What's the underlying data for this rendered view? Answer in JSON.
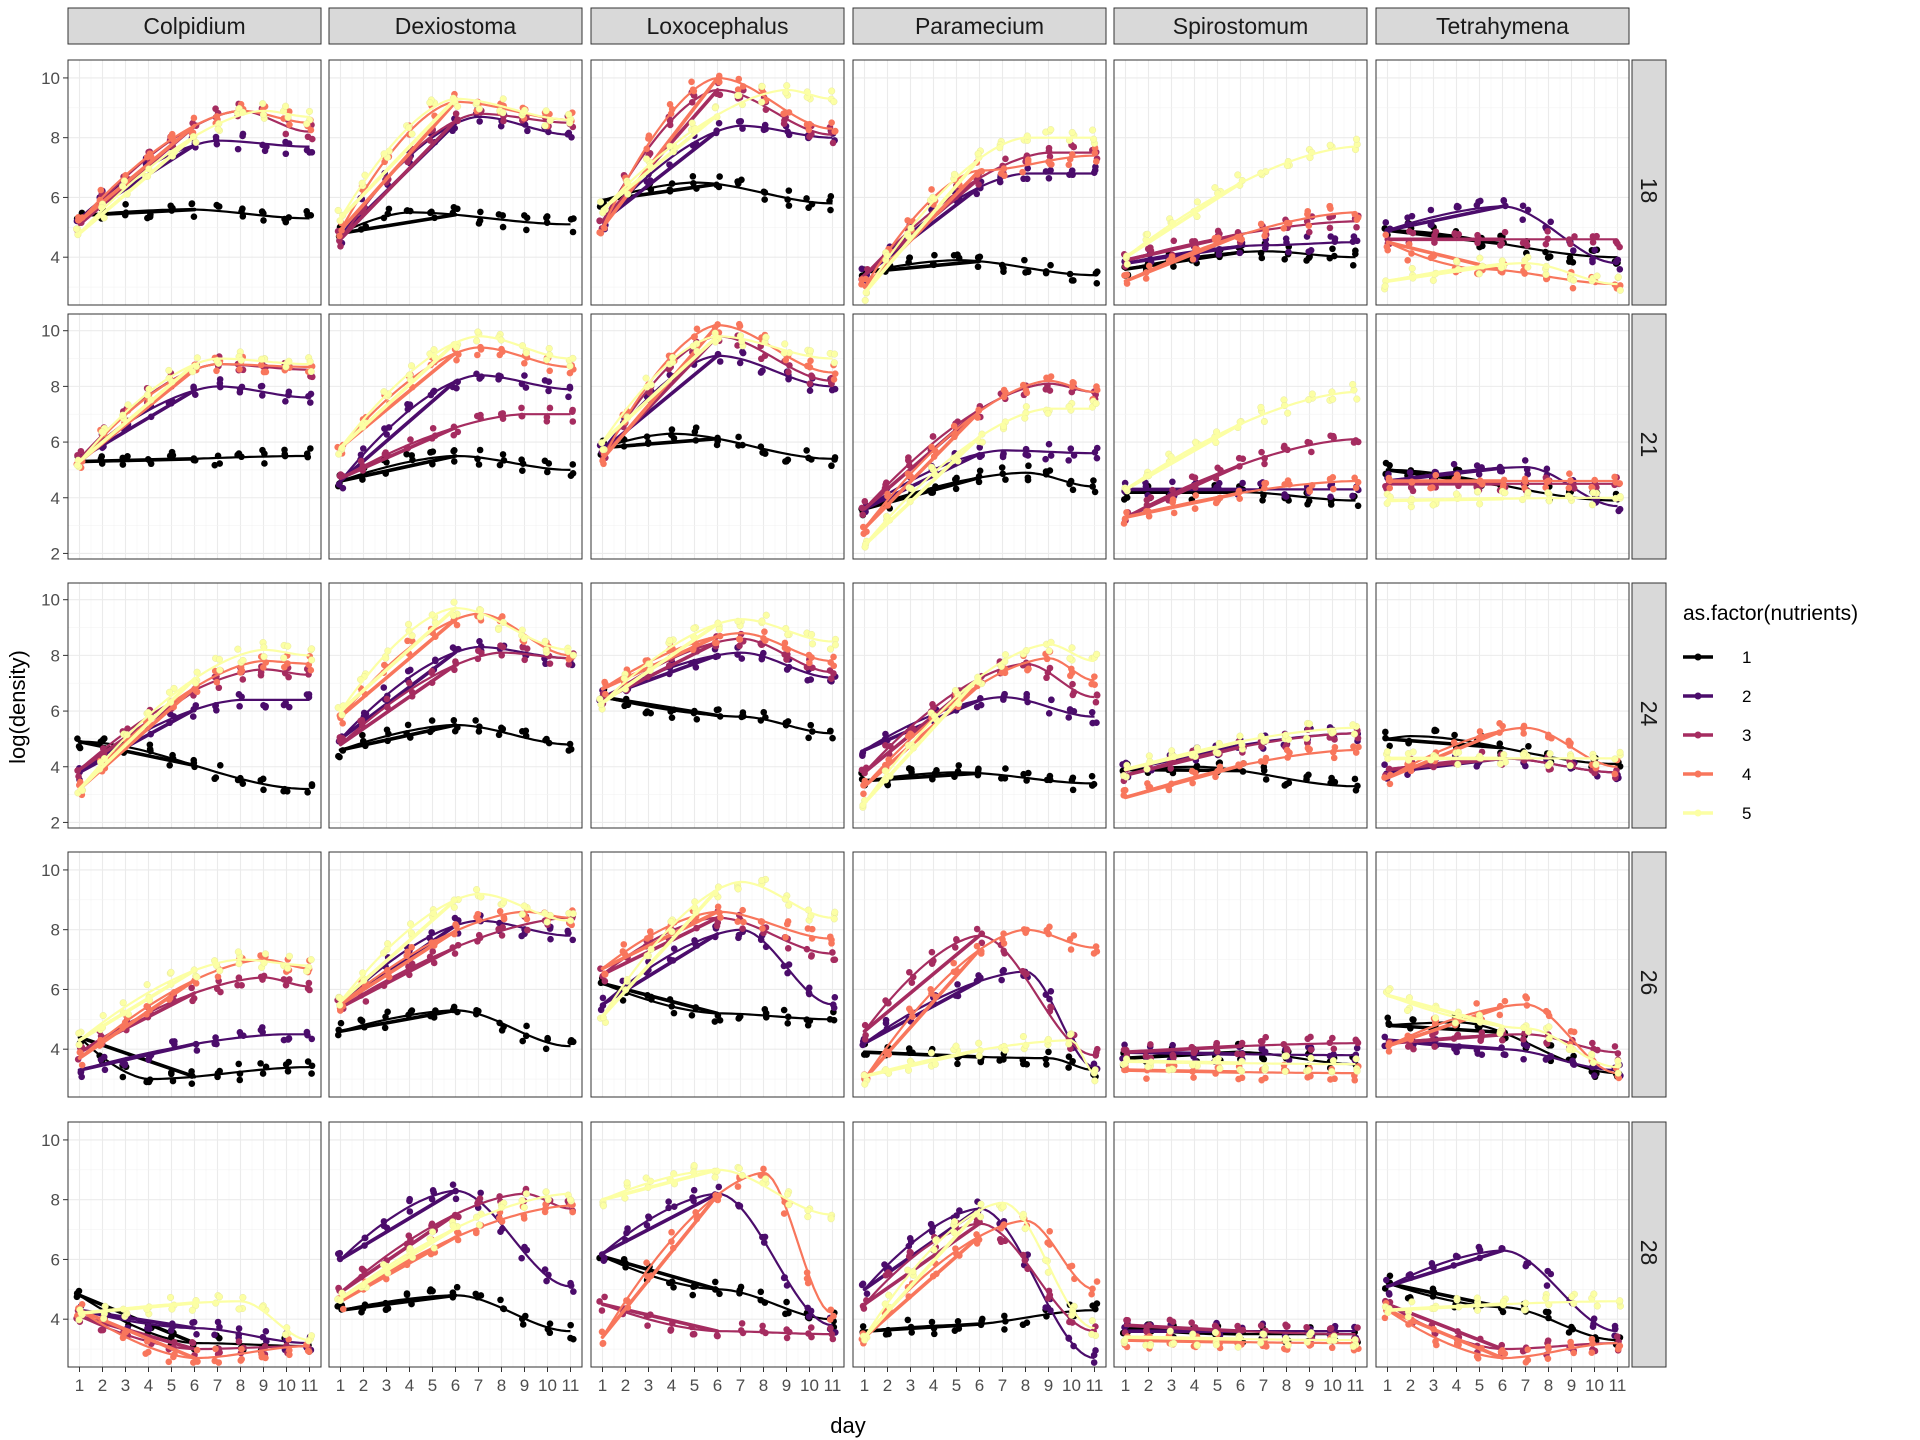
{
  "chart_data": {
    "type": "scatter",
    "facet_cols": [
      "Colpidium",
      "Dexiostoma",
      "Loxocephalus",
      "Paramecium",
      "Spirostomum",
      "Tetrahymena"
    ],
    "facet_rows": [
      "18",
      "21",
      "24",
      "26",
      "28"
    ],
    "xlabel": "day",
    "ylabel": "log(density)",
    "x_ticks": [
      "1",
      "2",
      "3",
      "4",
      "5",
      "6",
      "7",
      "8",
      "9",
      "10",
      "11"
    ],
    "y_ticks_by_row": [
      [
        "4",
        "6",
        "8",
        "10"
      ],
      [
        "2",
        "4",
        "6",
        "8",
        "10"
      ],
      [
        "2",
        "4",
        "6",
        "8",
        "10"
      ],
      [
        "4",
        "6",
        "8",
        "10"
      ],
      [
        "4",
        "6",
        "8",
        "10"
      ]
    ],
    "ylim_by_row": [
      [
        2.4,
        10.6
      ],
      [
        1.8,
        10.6
      ],
      [
        1.8,
        10.6
      ],
      [
        2.4,
        10.6
      ],
      [
        2.4,
        10.6
      ]
    ],
    "legend": {
      "title": "as.factor(nutrients)",
      "labels": [
        "1",
        "2",
        "3",
        "4",
        "5"
      ],
      "position": "right"
    },
    "colors": {
      "1": "#000000",
      "2": "#4b0c6b",
      "3": "#a52c60",
      "4": "#f8765c",
      "5": "#fcffa4",
      "strip": "#d9d9d9",
      "grid": "#ebebeb",
      "frame": "#333333"
    },
    "series_note_values": "each facet series given as [start, peak-day, peak, end] of the fitted curve",
    "series": [
      [
        [
          [
            5.4,
            5.6,
            5.6,
            5.3
          ],
          [
            5.3,
            7,
            7.9,
            7.7
          ],
          [
            5.1,
            8,
            8.9,
            8.2
          ],
          [
            5.2,
            8,
            8.9,
            8.5
          ],
          [
            4.8,
            9,
            8.9,
            8.7
          ]
        ],
        [
          [
            4.8,
            4,
            5.5,
            5.1
          ],
          [
            4.7,
            7,
            8.7,
            8.1
          ],
          [
            4.6,
            7,
            8.8,
            8.5
          ],
          [
            4.9,
            6,
            9.2,
            8.6
          ],
          [
            5.3,
            6,
            9.3,
            8.6
          ]
        ],
        [
          [
            5.9,
            5,
            6.5,
            5.8
          ],
          [
            5.2,
            7,
            8.4,
            8.0
          ],
          [
            5.2,
            6,
            9.6,
            8.1
          ],
          [
            5.0,
            6,
            10.0,
            8.3
          ],
          [
            5.6,
            9,
            9.6,
            9.3
          ]
        ],
        [
          [
            3.5,
            5,
            3.9,
            3.4
          ],
          [
            3.4,
            8,
            6.8,
            6.8
          ],
          [
            3.4,
            9,
            7.5,
            7.5
          ],
          [
            3.0,
            6,
            6.9,
            7.4
          ],
          [
            2.8,
            8,
            8.0,
            8.0
          ]
        ],
        [
          [
            3.6,
            7,
            4.2,
            4.0
          ],
          [
            3.8,
            7,
            4.4,
            4.5
          ],
          [
            3.9,
            11,
            5.2,
            5.2
          ],
          [
            3.2,
            11,
            5.5,
            5.5
          ],
          [
            4.0,
            11,
            7.7,
            7.7
          ]
        ],
        [
          [
            4.9,
            1,
            4.9,
            4.0
          ],
          [
            4.9,
            6,
            5.7,
            3.8
          ],
          [
            4.6,
            11,
            4.6,
            3.1
          ],
          [
            4.5,
            5,
            3.6,
            3.1
          ],
          [
            3.2,
            7,
            3.8,
            3.1
          ]
        ]
      ],
      [
        [
          [
            5.3,
            1,
            5.3,
            5.5
          ],
          [
            5.4,
            7,
            8.0,
            7.6
          ],
          [
            5.4,
            7,
            8.8,
            8.6
          ],
          [
            5.3,
            7,
            8.8,
            8.7
          ],
          [
            5.3,
            7,
            9.0,
            8.8
          ]
        ],
        [
          [
            4.6,
            6,
            5.5,
            5.0
          ],
          [
            4.6,
            7,
            8.4,
            7.9
          ],
          [
            4.7,
            9,
            7.0,
            7.0
          ],
          [
            5.8,
            7,
            9.4,
            8.7
          ],
          [
            5.8,
            7,
            9.8,
            9.0
          ]
        ],
        [
          [
            5.8,
            4,
            6.3,
            5.4
          ],
          [
            5.7,
            6,
            9.1,
            8.0
          ],
          [
            5.5,
            6,
            9.8,
            8.2
          ],
          [
            5.4,
            6,
            10.2,
            8.5
          ],
          [
            6.0,
            6,
            9.8,
            9.0
          ]
        ],
        [
          [
            3.6,
            8,
            4.9,
            4.4
          ],
          [
            3.6,
            7,
            5.7,
            5.6
          ],
          [
            3.6,
            9,
            8.1,
            7.8
          ],
          [
            2.9,
            9,
            8.2,
            7.8
          ],
          [
            2.3,
            9,
            7.2,
            7.2
          ]
        ],
        [
          [
            4.2,
            6,
            4.2,
            3.9
          ],
          [
            4.3,
            11,
            4.3,
            4.3
          ],
          [
            3.3,
            11,
            6.1,
            6.1
          ],
          [
            3.3,
            11,
            4.6,
            4.6
          ],
          [
            4.3,
            11,
            7.8,
            7.8
          ]
        ],
        [
          [
            5.0,
            1,
            5.0,
            3.9
          ],
          [
            4.6,
            7,
            5.1,
            3.7
          ],
          [
            4.5,
            11,
            4.5,
            3.5
          ],
          [
            4.6,
            11,
            4.6,
            3.3
          ],
          [
            3.9,
            11,
            4.0,
            3.5
          ]
        ]
      ],
      [
        [
          [
            4.9,
            1,
            4.9,
            3.2
          ],
          [
            3.8,
            8,
            6.4,
            6.4
          ],
          [
            3.9,
            9,
            7.5,
            7.3
          ],
          [
            3.2,
            9,
            7.8,
            7.7
          ],
          [
            3.2,
            9,
            8.2,
            8.0
          ]
        ],
        [
          [
            4.6,
            6,
            5.5,
            4.8
          ],
          [
            5.0,
            7,
            8.3,
            7.9
          ],
          [
            4.8,
            8,
            8.1,
            7.9
          ],
          [
            5.8,
            7,
            9.5,
            8.0
          ],
          [
            6.0,
            6,
            9.7,
            8.2
          ]
        ],
        [
          [
            6.5,
            7,
            5.8,
            5.2
          ],
          [
            6.5,
            7,
            8.1,
            7.2
          ],
          [
            6.4,
            7,
            8.6,
            7.4
          ],
          [
            6.8,
            7,
            8.8,
            7.8
          ],
          [
            6.3,
            7,
            9.3,
            8.5
          ]
        ],
        [
          [
            3.5,
            5,
            3.8,
            3.4
          ],
          [
            4.6,
            7,
            6.5,
            5.8
          ],
          [
            3.8,
            8,
            7.7,
            6.5
          ],
          [
            3.3,
            9,
            7.9,
            7.1
          ],
          [
            2.7,
            9,
            8.4,
            7.8
          ]
        ],
        [
          [
            3.9,
            4,
            4.0,
            3.3
          ],
          [
            3.9,
            11,
            5.2,
            5.2
          ],
          [
            3.7,
            11,
            5.2,
            5.2
          ],
          [
            2.9,
            11,
            4.6,
            4.6
          ],
          [
            3.9,
            11,
            5.4,
            5.4
          ]
        ],
        [
          [
            5.0,
            2,
            5.1,
            4.1
          ],
          [
            3.8,
            6,
            4.3,
            3.8
          ],
          [
            3.9,
            6,
            4.3,
            3.8
          ],
          [
            3.6,
            7,
            5.4,
            4.0
          ],
          [
            4.3,
            11,
            4.3,
            3.6
          ]
        ]
      ],
      [
        [
          [
            4.4,
            4,
            3.0,
            3.4
          ],
          [
            3.3,
            10,
            4.5,
            4.5
          ],
          [
            3.9,
            9,
            6.4,
            6.1
          ],
          [
            3.7,
            9,
            7.0,
            6.7
          ],
          [
            4.3,
            8,
            7.0,
            6.8
          ]
        ],
        [
          [
            4.6,
            6,
            5.3,
            4.1
          ],
          [
            5.5,
            7,
            8.3,
            7.8
          ],
          [
            5.4,
            11,
            8.4,
            8.4
          ],
          [
            5.5,
            9,
            8.6,
            8.4
          ],
          [
            5.6,
            7,
            9.2,
            8.3
          ]
        ],
        [
          [
            6.2,
            6,
            5.2,
            5.0
          ],
          [
            5.5,
            7,
            8.0,
            5.5
          ],
          [
            6.5,
            6,
            8.4,
            7.2
          ],
          [
            6.7,
            6,
            8.6,
            7.7
          ],
          [
            5.1,
            7,
            9.6,
            8.4
          ]
        ],
        [
          [
            3.9,
            9,
            3.7,
            3.3
          ],
          [
            4.2,
            8,
            6.6,
            3.4
          ],
          [
            4.6,
            6,
            7.8,
            3.8
          ],
          [
            3.0,
            8,
            8.0,
            7.4
          ],
          [
            3.1,
            10,
            4.3,
            3.2
          ]
        ],
        [
          [
            3.7,
            6,
            3.9,
            3.5
          ],
          [
            3.9,
            11,
            3.8,
            3.8
          ],
          [
            3.9,
            11,
            4.2,
            4.2
          ],
          [
            3.3,
            11,
            3.2,
            3.2
          ],
          [
            3.6,
            11,
            3.5,
            3.5
          ]
        ],
        [
          [
            4.8,
            4,
            4.9,
            3.2
          ],
          [
            4.3,
            6,
            4.0,
            3.3
          ],
          [
            4.2,
            7,
            4.5,
            3.9
          ],
          [
            4.1,
            7,
            5.5,
            3.2
          ],
          [
            5.8,
            7,
            4.7,
            3.4
          ]
        ]
      ],
      [
        [
          [
            4.8,
            6,
            3.2,
            3.1
          ],
          [
            4.3,
            6,
            3.7,
            3.2
          ],
          [
            4.1,
            6,
            3.0,
            3.1
          ],
          [
            4.3,
            6,
            2.7,
            3.1
          ],
          [
            4.2,
            8,
            4.6,
            3.3
          ]
        ],
        [
          [
            4.3,
            6,
            4.8,
            3.6
          ],
          [
            6.0,
            6,
            8.3,
            5.1
          ],
          [
            4.9,
            9,
            8.2,
            7.7
          ],
          [
            4.6,
            11,
            7.8,
            7.8
          ],
          [
            4.7,
            11,
            8.2,
            8.2
          ]
        ],
        [
          [
            6.1,
            6,
            5.0,
            4.0
          ],
          [
            6.2,
            6,
            8.2,
            3.8
          ],
          [
            4.5,
            6,
            3.6,
            3.5
          ],
          [
            3.4,
            8,
            8.9,
            4.2
          ],
          [
            8.0,
            6,
            9.0,
            7.5
          ]
        ],
        [
          [
            3.6,
            5,
            3.8,
            4.3
          ],
          [
            5.0,
            6,
            7.7,
            2.7
          ],
          [
            4.5,
            6,
            7.2,
            3.6
          ],
          [
            3.4,
            8,
            7.3,
            5.0
          ],
          [
            3.4,
            7,
            7.9,
            3.7
          ]
        ],
        [
          [
            3.7,
            5,
            3.5,
            3.5
          ],
          [
            3.6,
            11,
            3.6,
            3.6
          ],
          [
            3.8,
            11,
            3.5,
            3.5
          ],
          [
            3.3,
            11,
            3.2,
            3.2
          ],
          [
            3.4,
            11,
            3.3,
            3.3
          ]
        ],
        [
          [
            5.2,
            6,
            4.4,
            3.3
          ],
          [
            5.1,
            6,
            6.3,
            3.6
          ],
          [
            4.5,
            6,
            3.0,
            3.2
          ],
          [
            4.3,
            6,
            2.7,
            3.2
          ],
          [
            4.3,
            11,
            4.6,
            4.6
          ]
        ]
      ]
    ]
  }
}
